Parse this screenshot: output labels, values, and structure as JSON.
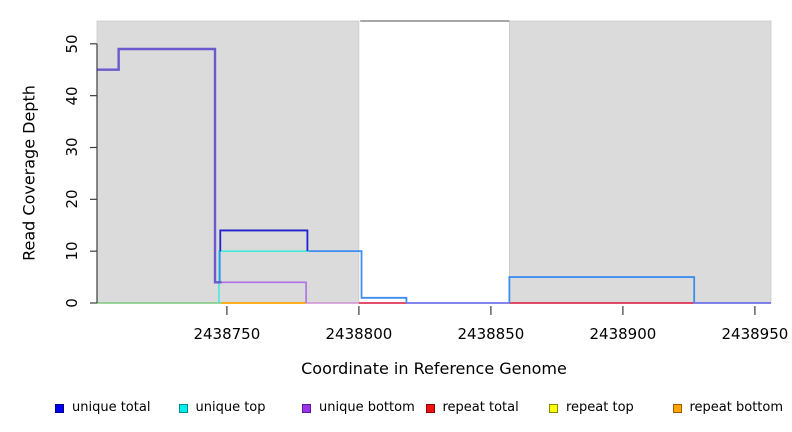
{
  "chart_data": {
    "type": "line",
    "subtype": "step-coverage",
    "title": "",
    "xlabel": "Coordinate in Reference Genome",
    "ylabel": "Read Coverage Depth",
    "xlim": [
      2438700.8,
      2438956.1
    ],
    "ylim": [
      0,
      54.4
    ],
    "x_ticks": [
      2438750,
      2438800,
      2438850,
      2438900,
      2438950
    ],
    "y_ticks": [
      0,
      10,
      20,
      30,
      40,
      50
    ],
    "grid": false,
    "legend_position": "bottom",
    "background_color": "#ffffff",
    "shaded_regions": [
      {
        "x0": 2438700.8,
        "x1": 2438800,
        "color": "#dbdbdb",
        "edge": "#c8c8c8"
      },
      {
        "x0": 2438857,
        "x1": 2438956.1,
        "color": "#dbdbdb",
        "edge": "#c8c8c8"
      }
    ],
    "gap_top_line": {
      "x0": 2438800.5,
      "x1": 2438857,
      "y": 54.4,
      "color": "#8a8a8a",
      "width": 1.4
    },
    "series": [
      {
        "name": "unique total",
        "color": "#0000ee",
        "steps": [
          [
            2438701,
            45
          ],
          [
            2438709,
            49
          ],
          [
            2438745.5,
            4
          ],
          [
            2438747.5,
            14
          ],
          [
            2438780.5,
            10
          ],
          [
            2438800.5,
            1
          ],
          [
            2438818,
            0
          ],
          [
            2438857,
            5
          ],
          [
            2438927,
            0
          ]
        ]
      },
      {
        "name": "unique top",
        "color": "#00eeee",
        "steps": [
          [
            2438701,
            0
          ],
          [
            2438747,
            10
          ],
          [
            2438800.5,
            1
          ],
          [
            2438818,
            0
          ],
          [
            2438857,
            5
          ],
          [
            2438927,
            0
          ]
        ]
      },
      {
        "name": "unique bottom",
        "color": "#9a32e8",
        "steps": [
          [
            2438701,
            45
          ],
          [
            2438709,
            49
          ],
          [
            2438745.5,
            4
          ],
          [
            2438780,
            0
          ]
        ]
      },
      {
        "name": "repeat total",
        "color": "#ee1111",
        "steps": [
          [
            2438701,
            0
          ]
        ]
      },
      {
        "name": "repeat top",
        "color": "#ffff00",
        "steps": [
          [
            2438701,
            0
          ]
        ]
      },
      {
        "name": "repeat bottom",
        "color": "#ffa500",
        "steps": [
          [
            2438701,
            0
          ]
        ]
      }
    ],
    "visible_lines": [
      {
        "name": "zero-line-green",
        "color": "#7cc87c",
        "width": 1.5,
        "pts": [
          [
            2438700.8,
            0
          ],
          [
            2438748,
            0
          ]
        ]
      },
      {
        "name": "zero-line-orange",
        "color": "#ffa500",
        "width": 1.8,
        "pts": [
          [
            2438748,
            0
          ],
          [
            2438780,
            0
          ]
        ]
      },
      {
        "name": "zero-line-plum",
        "color": "#ce8fd2",
        "width": 1.5,
        "pts": [
          [
            2438780,
            0
          ],
          [
            2438800,
            0
          ]
        ]
      },
      {
        "name": "zero-line-crimson-a",
        "color": "#dc143c",
        "width": 1.4,
        "pts": [
          [
            2438800,
            0
          ],
          [
            2438818,
            0
          ]
        ]
      },
      {
        "name": "zero-line-blueviolet-a",
        "color": "#5a5ae6",
        "width": 1.5,
        "pts": [
          [
            2438818,
            0
          ],
          [
            2438857,
            0
          ]
        ]
      },
      {
        "name": "zero-line-crimson-b",
        "color": "#dc143c",
        "width": 1.4,
        "pts": [
          [
            2438857,
            0
          ],
          [
            2438927,
            0
          ]
        ]
      },
      {
        "name": "zero-line-blueviolet-b",
        "color": "#5a5ae6",
        "width": 1.5,
        "pts": [
          [
            2438927,
            0
          ],
          [
            2438956.1,
            0
          ]
        ]
      },
      {
        "name": "unique-top-line",
        "color": "#45e8dc",
        "width": 1.6,
        "pts": [
          [
            2438747,
            0
          ],
          [
            2438747,
            10
          ],
          [
            2438781,
            10
          ]
        ]
      },
      {
        "name": "unique-bottom-line",
        "color": "#ab72e0",
        "width": 1.6,
        "pts": [
          [
            2438748,
            4
          ],
          [
            2438780,
            4
          ],
          [
            2438780,
            0
          ]
        ]
      },
      {
        "name": "blue-over-cyan-rise",
        "color": "#3e8ef0",
        "width": 1.8,
        "pts": [
          [
            2438747.3,
            4
          ],
          [
            2438747.3,
            10
          ]
        ]
      },
      {
        "name": "blue-over-cyan-mid",
        "color": "#3e8ef0",
        "width": 1.8,
        "pts": [
          [
            2438781,
            10
          ],
          [
            2438801,
            10
          ],
          [
            2438801,
            1
          ],
          [
            2438818,
            1
          ],
          [
            2438818,
            0
          ]
        ]
      },
      {
        "name": "blue-over-cyan-right",
        "color": "#3e8ef0",
        "width": 1.8,
        "pts": [
          [
            2438857,
            0
          ],
          [
            2438857,
            5
          ],
          [
            2438927,
            5
          ],
          [
            2438927,
            0
          ]
        ]
      },
      {
        "name": "unique-total-14-line",
        "color": "#2121cd",
        "width": 1.8,
        "pts": [
          [
            2438747.5,
            10
          ],
          [
            2438747.5,
            14
          ],
          [
            2438780.5,
            14
          ],
          [
            2438780.5,
            10
          ]
        ]
      },
      {
        "name": "blue-over-purple-left",
        "color": "#6a5acd",
        "width": 2.4,
        "pts": [
          [
            2438700.8,
            45
          ],
          [
            2438709,
            45
          ],
          [
            2438709,
            49
          ],
          [
            2438745.5,
            49
          ],
          [
            2438745.5,
            4
          ],
          [
            2438748,
            4
          ]
        ]
      }
    ],
    "legend": [
      {
        "label": "unique total",
        "fill": "#0000ee",
        "border": "#00008b"
      },
      {
        "label": "unique top",
        "fill": "#00eeee",
        "border": "#008b8b"
      },
      {
        "label": "unique bottom",
        "fill": "#9a32e8",
        "border": "#5e1a9e"
      },
      {
        "label": "repeat total",
        "fill": "#ee1111",
        "border": "#8b0000"
      },
      {
        "label": "repeat top",
        "fill": "#ffff00",
        "border": "#8b8b00"
      },
      {
        "label": "repeat bottom",
        "fill": "#ffa500",
        "border": "#a05a00"
      }
    ],
    "axis_color": "#3c3c3c"
  }
}
